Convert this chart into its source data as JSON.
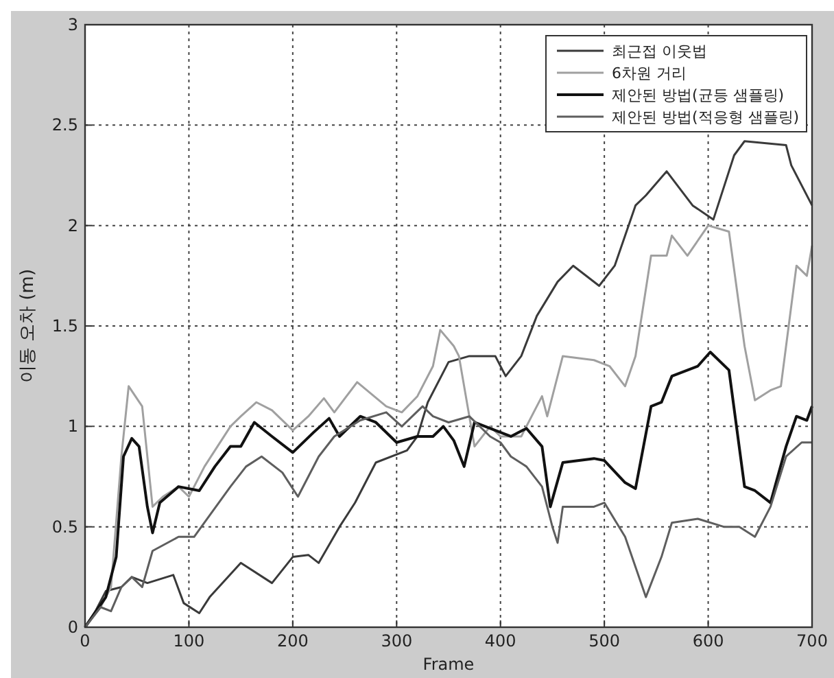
{
  "chart_data": {
    "type": "line",
    "xlabel": "Frame",
    "ylabel": "이동 오차 (m)",
    "xlim": [
      0,
      700
    ],
    "xticks": [
      0,
      100,
      200,
      300,
      400,
      500,
      600,
      700
    ],
    "ylim": [
      0,
      3
    ],
    "yticks": [
      0,
      0.5,
      1,
      1.5,
      2,
      2.5,
      3
    ],
    "grid": true,
    "legend": "top right",
    "line_style": "solid",
    "marker": "none",
    "series": [
      {
        "name": "최근접 이웃법",
        "color": "#3a3a3a",
        "x": [
          0,
          10,
          20,
          35,
          45,
          60,
          85,
          95,
          110,
          120,
          150,
          180,
          200,
          215,
          225,
          245,
          260,
          280,
          310,
          320,
          330,
          350,
          370,
          395,
          405,
          420,
          435,
          455,
          470,
          495,
          510,
          530,
          540,
          560,
          585,
          605,
          625,
          635,
          675,
          680,
          700
        ],
        "values": [
          0,
          0.08,
          0.18,
          0.2,
          0.25,
          0.22,
          0.26,
          0.12,
          0.07,
          0.15,
          0.32,
          0.22,
          0.35,
          0.36,
          0.32,
          0.5,
          0.62,
          0.82,
          0.88,
          0.95,
          1.12,
          1.32,
          1.35,
          1.35,
          1.25,
          1.35,
          1.55,
          1.72,
          1.8,
          1.7,
          1.8,
          2.1,
          2.15,
          2.27,
          2.1,
          2.03,
          2.35,
          2.42,
          2.4,
          2.3,
          2.1
        ]
      },
      {
        "name": "6차원 거리",
        "color": "#a0a0a0",
        "x": [
          0,
          15,
          25,
          35,
          42,
          55,
          65,
          75,
          90,
          100,
          115,
          140,
          150,
          165,
          180,
          200,
          215,
          230,
          240,
          262,
          290,
          305,
          320,
          335,
          342,
          355,
          360,
          375,
          390,
          400,
          420,
          440,
          445,
          460,
          490,
          505,
          520,
          530,
          545,
          560,
          565,
          580,
          600,
          620,
          635,
          645,
          660,
          670,
          685,
          695,
          700
        ],
        "values": [
          0,
          0.1,
          0.2,
          0.85,
          1.2,
          1.1,
          0.6,
          0.65,
          0.7,
          0.65,
          0.8,
          1.0,
          1.05,
          1.12,
          1.08,
          0.98,
          1.05,
          1.14,
          1.07,
          1.22,
          1.1,
          1.07,
          1.15,
          1.3,
          1.48,
          1.4,
          1.35,
          0.9,
          1.0,
          0.95,
          0.95,
          1.15,
          1.05,
          1.35,
          1.33,
          1.3,
          1.2,
          1.35,
          1.85,
          1.85,
          1.95,
          1.85,
          2.0,
          1.97,
          1.4,
          1.13,
          1.18,
          1.2,
          1.8,
          1.75,
          1.9
        ]
      },
      {
        "name": "제안된 방법(균등 샘플링)",
        "color": "#111111",
        "x": [
          0,
          20,
          30,
          37,
          45,
          52,
          60,
          65,
          72,
          90,
          110,
          125,
          140,
          150,
          163,
          180,
          200,
          220,
          235,
          245,
          265,
          280,
          300,
          320,
          335,
          345,
          355,
          365,
          375,
          395,
          410,
          425,
          440,
          448,
          460,
          490,
          500,
          520,
          530,
          545,
          555,
          565,
          590,
          602,
          620,
          635,
          645,
          660,
          675,
          685,
          695,
          700
        ],
        "values": [
          0,
          0.15,
          0.35,
          0.85,
          0.94,
          0.9,
          0.6,
          0.47,
          0.62,
          0.7,
          0.68,
          0.8,
          0.9,
          0.9,
          1.02,
          0.95,
          0.87,
          0.97,
          1.04,
          0.95,
          1.05,
          1.02,
          0.92,
          0.95,
          0.95,
          1.0,
          0.93,
          0.8,
          1.02,
          0.98,
          0.95,
          0.99,
          0.9,
          0.6,
          0.82,
          0.84,
          0.83,
          0.72,
          0.69,
          1.1,
          1.12,
          1.25,
          1.3,
          1.37,
          1.28,
          0.7,
          0.68,
          0.62,
          0.9,
          1.05,
          1.03,
          1.1
        ]
      },
      {
        "name": "제안된 방법(적응형 샘플링)",
        "color": "#5e5e5e",
        "x": [
          0,
          15,
          25,
          35,
          45,
          55,
          65,
          90,
          105,
          140,
          155,
          170,
          190,
          205,
          225,
          240,
          265,
          290,
          305,
          325,
          335,
          350,
          370,
          390,
          400,
          410,
          425,
          440,
          450,
          455,
          460,
          490,
          500,
          520,
          540,
          555,
          565,
          590,
          615,
          630,
          645,
          660,
          675,
          690,
          700
        ],
        "values": [
          0,
          0.1,
          0.08,
          0.2,
          0.25,
          0.2,
          0.38,
          0.45,
          0.45,
          0.7,
          0.8,
          0.85,
          0.77,
          0.65,
          0.85,
          0.95,
          1.03,
          1.07,
          1.0,
          1.1,
          1.05,
          1.02,
          1.05,
          0.95,
          0.92,
          0.85,
          0.8,
          0.7,
          0.5,
          0.42,
          0.6,
          0.6,
          0.62,
          0.45,
          0.15,
          0.35,
          0.52,
          0.54,
          0.5,
          0.5,
          0.45,
          0.6,
          0.85,
          0.92,
          0.92
        ]
      }
    ]
  }
}
